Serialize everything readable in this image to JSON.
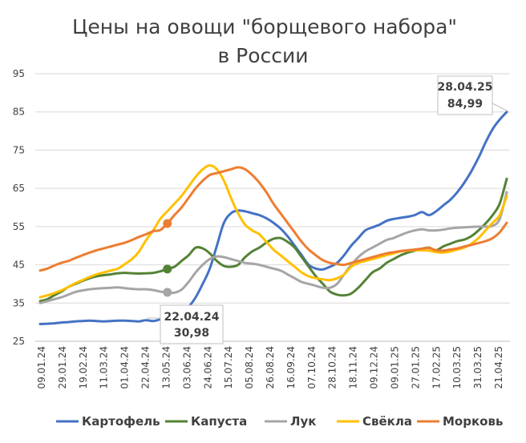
{
  "chart_data": {
    "type": "line",
    "title_line1": "Цены на овощи \"борщевого набора\"",
    "title_line2": "в России",
    "ylim": [
      25,
      95
    ],
    "yticks": [
      25,
      35,
      45,
      55,
      65,
      75,
      85,
      95
    ],
    "x_labels": [
      "09.01.24",
      "29.01.24",
      "19.02.24",
      "11.03.24",
      "01.04.24",
      "22.04.24",
      "13.05.24",
      "03.06.24",
      "24.06.24",
      "15.07.24",
      "05.08.24",
      "26.08.24",
      "16.09.24",
      "07.10.24",
      "28.10.24",
      "18.11.24",
      "09.12.24",
      "09.01.25",
      "27.01.25",
      "17.02.25",
      "10.03.25",
      "31.03.25",
      "21.04.25"
    ],
    "series": [
      {
        "name": "Картофель",
        "color": "#4472c4",
        "values": [
          29.5,
          29.6,
          29.7,
          29.9,
          30.0,
          30.2,
          30.3,
          30.4,
          30.3,
          30.2,
          30.3,
          30.4,
          30.4,
          30.3,
          30.2,
          30.5,
          30.3,
          30.7,
          30.98,
          31.5,
          32.5,
          34.0,
          36.5,
          40.0,
          44.0,
          50.0,
          56.0,
          58.5,
          59.2,
          59.0,
          58.5,
          58.0,
          57.2,
          56.0,
          54.5,
          52.5,
          50.0,
          47.5,
          45.0,
          44.0,
          43.8,
          44.5,
          45.5,
          47.5,
          50.0,
          52.0,
          54.0,
          54.8,
          55.5,
          56.5,
          57.0,
          57.3,
          57.6,
          58.0,
          58.8,
          58.0,
          59.0,
          60.5,
          62.0,
          64.0,
          66.5,
          69.5,
          73.0,
          77.0,
          80.5,
          83.0,
          84.99
        ]
      },
      {
        "name": "Капуста",
        "color": "#548235",
        "values": [
          35.5,
          36.0,
          37.0,
          38.0,
          39.2,
          40.0,
          40.8,
          41.5,
          42.0,
          42.3,
          42.5,
          42.8,
          42.9,
          42.8,
          42.7,
          42.8,
          42.9,
          43.3,
          43.9,
          44.5,
          46.0,
          47.5,
          49.5,
          49.3,
          48.0,
          46.0,
          44.7,
          44.5,
          45.0,
          47.0,
          48.5,
          49.5,
          50.8,
          51.8,
          52.0,
          51.0,
          49.5,
          47.0,
          44.5,
          42.0,
          40.0,
          38.0,
          37.2,
          37.0,
          37.5,
          39.0,
          41.0,
          43.0,
          44.0,
          45.5,
          46.5,
          47.5,
          48.2,
          48.7,
          49.2,
          49.5,
          48.8,
          49.8,
          50.5,
          51.2,
          51.6,
          52.5,
          54.0,
          55.8,
          58.0,
          61.0,
          67.5
        ]
      },
      {
        "name": "Лук",
        "color": "#a5a5a5",
        "values": [
          35.0,
          35.5,
          36.0,
          36.5,
          37.2,
          37.9,
          38.3,
          38.6,
          38.8,
          38.9,
          39.0,
          39.1,
          38.9,
          38.7,
          38.6,
          38.6,
          38.4,
          38.0,
          37.8,
          37.7,
          38.5,
          40.5,
          43.0,
          45.0,
          46.5,
          47.2,
          47.0,
          46.5,
          46.0,
          45.5,
          45.3,
          45.0,
          44.5,
          44.0,
          43.5,
          42.5,
          41.5,
          40.5,
          40.0,
          39.5,
          39.0,
          39.0,
          40.0,
          42.5,
          45.0,
          47.0,
          48.5,
          49.5,
          50.5,
          51.5,
          52.0,
          52.8,
          53.5,
          54.0,
          54.3,
          54.0,
          54.0,
          54.2,
          54.5,
          54.7,
          54.8,
          54.9,
          55.0,
          55.0,
          55.2,
          57.0,
          64.0
        ]
      },
      {
        "name": "Свёкла",
        "color": "#ffc000",
        "values": [
          36.5,
          37.0,
          37.6,
          38.3,
          39.2,
          40.2,
          41.0,
          41.8,
          42.5,
          43.0,
          43.5,
          44.0,
          45.2,
          46.5,
          48.5,
          51.5,
          54.0,
          57.0,
          59.0,
          61.0,
          63.0,
          65.5,
          68.0,
          70.0,
          71.0,
          70.0,
          67.0,
          62.5,
          58.5,
          55.5,
          54.0,
          53.0,
          51.0,
          49.0,
          47.5,
          46.0,
          44.5,
          43.0,
          42.0,
          41.5,
          41.2,
          41.0,
          41.5,
          42.5,
          44.5,
          45.5,
          46.0,
          46.5,
          47.0,
          47.5,
          48.0,
          48.5,
          48.7,
          48.8,
          48.8,
          48.7,
          48.3,
          48.2,
          48.5,
          49.0,
          49.5,
          50.5,
          52.0,
          54.0,
          56.0,
          58.0,
          63.0
        ]
      },
      {
        "name": "Морковь",
        "color": "#ed7d31",
        "values": [
          43.5,
          44.0,
          44.8,
          45.5,
          46.0,
          46.8,
          47.5,
          48.2,
          48.8,
          49.3,
          49.8,
          50.3,
          50.8,
          51.5,
          52.3,
          53.0,
          53.8,
          54.1,
          55.8,
          58.0,
          60.0,
          62.5,
          65.0,
          67.0,
          68.5,
          69.0,
          69.5,
          70.0,
          70.5,
          70.0,
          68.5,
          66.5,
          64.0,
          61.0,
          58.5,
          56.0,
          53.5,
          51.0,
          49.0,
          47.5,
          46.2,
          45.5,
          45.2,
          45.0,
          45.5,
          46.0,
          46.5,
          47.0,
          47.5,
          48.0,
          48.3,
          48.6,
          48.8,
          49.0,
          49.2,
          49.4,
          48.8,
          48.7,
          49.0,
          49.3,
          49.8,
          50.2,
          50.7,
          51.2,
          52.0,
          53.5,
          56.0
        ]
      }
    ],
    "markers": [
      {
        "series": 0,
        "index": 18,
        "label": ""
      },
      {
        "series": 1,
        "index": 18,
        "label": ""
      },
      {
        "series": 2,
        "index": 18,
        "label": ""
      },
      {
        "series": 4,
        "index": 18,
        "label": ""
      }
    ],
    "callouts": [
      {
        "date": "22.04.24",
        "value": "30,98"
      },
      {
        "date": "28.04.25",
        "value": "84,99"
      }
    ]
  }
}
